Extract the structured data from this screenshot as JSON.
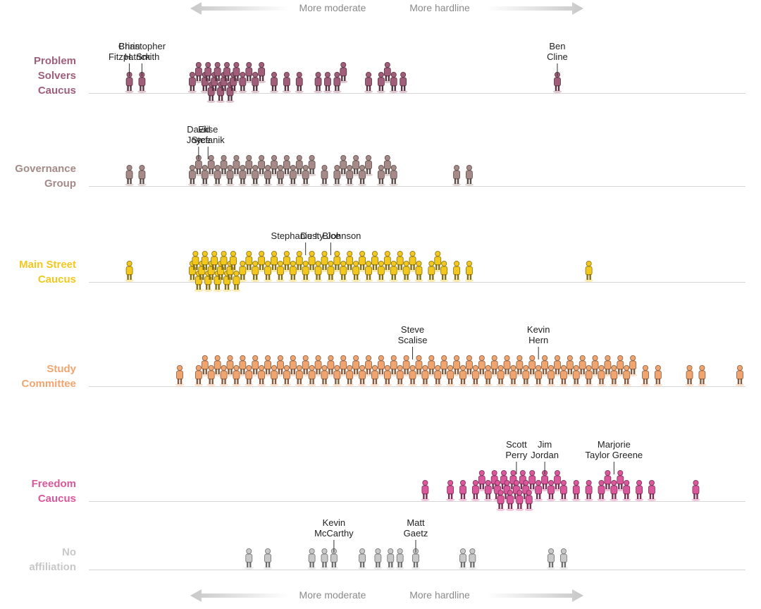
{
  "chart_data": {
    "type": "scatter",
    "description_axis": {
      "left_label": "More moderate",
      "right_label": "More hardline"
    },
    "caucuses": [
      {
        "id": "problem-solvers",
        "label_lines": [
          "Problem",
          "Solvers",
          "Caucus"
        ],
        "color": "#a05e7a",
        "x_values": [
          0.06,
          0.08,
          0.16,
          0.17,
          0.18,
          0.185,
          0.19,
          0.195,
          0.2,
          0.205,
          0.21,
          0.215,
          0.22,
          0.225,
          0.23,
          0.24,
          0.25,
          0.26,
          0.27,
          0.29,
          0.31,
          0.33,
          0.36,
          0.375,
          0.39,
          0.4,
          0.44,
          0.46,
          0.47,
          0.48,
          0.495,
          0.74
        ],
        "annotations": [
          {
            "lines": [
              "Brian",
              "Fitzpatrick"
            ],
            "x": 0.06
          },
          {
            "lines": [
              "Christopher",
              "H. Smith"
            ],
            "x": 0.08
          },
          {
            "lines": [
              "Ben",
              "Cline"
            ],
            "x": 0.74
          }
        ]
      },
      {
        "id": "governance-group",
        "label_lines": [
          "Governance",
          "Group"
        ],
        "color": "#a58a87",
        "x_values": [
          0.06,
          0.08,
          0.16,
          0.17,
          0.18,
          0.19,
          0.2,
          0.21,
          0.22,
          0.23,
          0.24,
          0.25,
          0.26,
          0.27,
          0.28,
          0.29,
          0.3,
          0.31,
          0.32,
          0.33,
          0.34,
          0.35,
          0.37,
          0.39,
          0.4,
          0.41,
          0.42,
          0.43,
          0.44,
          0.46,
          0.47,
          0.48,
          0.58,
          0.6
        ],
        "annotations": [
          {
            "lines": [
              "David",
              "Joyce"
            ],
            "x": 0.17
          },
          {
            "lines": [
              "Elise",
              "Stefanik"
            ],
            "x": 0.185
          }
        ]
      },
      {
        "id": "main-street",
        "label_lines": [
          "Main Street",
          "Caucus"
        ],
        "color": "#f2c81e",
        "x_values": [
          0.06,
          0.16,
          0.165,
          0.17,
          0.175,
          0.18,
          0.185,
          0.19,
          0.195,
          0.2,
          0.205,
          0.21,
          0.215,
          0.22,
          0.225,
          0.23,
          0.24,
          0.25,
          0.26,
          0.27,
          0.28,
          0.29,
          0.3,
          0.31,
          0.32,
          0.33,
          0.34,
          0.35,
          0.36,
          0.37,
          0.38,
          0.39,
          0.4,
          0.41,
          0.42,
          0.43,
          0.44,
          0.45,
          0.46,
          0.47,
          0.48,
          0.49,
          0.5,
          0.51,
          0.52,
          0.54,
          0.55,
          0.56,
          0.58,
          0.6,
          0.79
        ],
        "annotations": [
          {
            "lines": [
              "Stephanie I. Bice"
            ],
            "x": 0.34
          },
          {
            "lines": [
              "Dusty Johnson"
            ],
            "x": 0.38
          }
        ]
      },
      {
        "id": "study-committee",
        "label_lines": [
          "Study",
          "Committee"
        ],
        "color": "#f0a570",
        "x_values": [
          0.14,
          0.17,
          0.18,
          0.19,
          0.2,
          0.21,
          0.22,
          0.23,
          0.24,
          0.25,
          0.26,
          0.27,
          0.28,
          0.29,
          0.3,
          0.31,
          0.32,
          0.33,
          0.34,
          0.35,
          0.36,
          0.37,
          0.38,
          0.39,
          0.4,
          0.41,
          0.42,
          0.43,
          0.44,
          0.45,
          0.46,
          0.47,
          0.48,
          0.49,
          0.5,
          0.51,
          0.52,
          0.53,
          0.54,
          0.55,
          0.56,
          0.57,
          0.58,
          0.59,
          0.6,
          0.61,
          0.62,
          0.63,
          0.64,
          0.65,
          0.66,
          0.67,
          0.68,
          0.69,
          0.7,
          0.71,
          0.72,
          0.73,
          0.74,
          0.75,
          0.76,
          0.77,
          0.78,
          0.79,
          0.8,
          0.81,
          0.82,
          0.83,
          0.84,
          0.85,
          0.86,
          0.88,
          0.9,
          0.95,
          0.97,
          1.03
        ],
        "annotations": [
          {
            "lines": [
              "Steve",
              "Scalise"
            ],
            "x": 0.51
          },
          {
            "lines": [
              "Kevin",
              "Hern"
            ],
            "x": 0.71
          }
        ]
      },
      {
        "id": "freedom-caucus",
        "label_lines": [
          "Freedom",
          "Caucus"
        ],
        "color": "#d9579a",
        "x_values": [
          0.53,
          0.57,
          0.59,
          0.61,
          0.62,
          0.63,
          0.64,
          0.645,
          0.65,
          0.655,
          0.66,
          0.665,
          0.67,
          0.675,
          0.68,
          0.685,
          0.69,
          0.695,
          0.7,
          0.71,
          0.72,
          0.73,
          0.74,
          0.75,
          0.77,
          0.79,
          0.81,
          0.82,
          0.83,
          0.84,
          0.85,
          0.87,
          0.89,
          0.96
        ],
        "annotations": [
          {
            "lines": [
              "Scott",
              "Perry"
            ],
            "x": 0.675
          },
          {
            "lines": [
              "Jim",
              "Jordan"
            ],
            "x": 0.72
          },
          {
            "lines": [
              "Marjorie",
              "Taylor Greene"
            ],
            "x": 0.83
          }
        ]
      },
      {
        "id": "no-affiliation",
        "label_lines": [
          "No",
          "affiliation"
        ],
        "color": "#c8c8c8",
        "x_values": [
          0.25,
          0.28,
          0.35,
          0.37,
          0.385,
          0.43,
          0.455,
          0.475,
          0.49,
          0.515,
          0.59,
          0.605,
          0.73,
          0.75
        ],
        "annotations": [
          {
            "lines": [
              "Kevin",
              "McCarthy"
            ],
            "x": 0.385
          },
          {
            "lines": [
              "Matt",
              "Gaetz"
            ],
            "x": 0.515
          }
        ]
      }
    ],
    "grid": false
  }
}
